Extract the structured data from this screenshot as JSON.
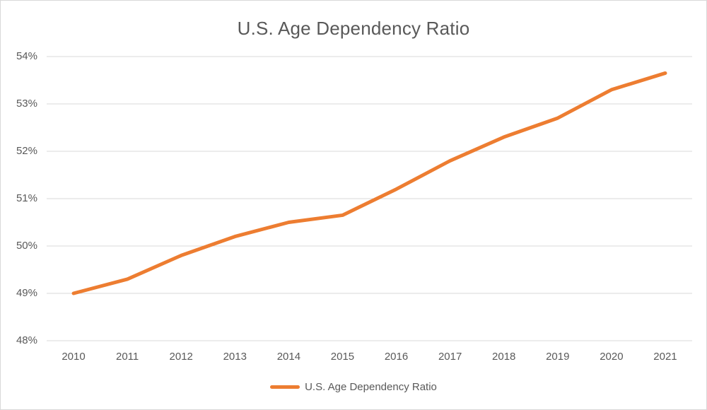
{
  "chart": {
    "title": "U.S. Age Dependency Ratio",
    "legend_label": "U.S. Age Dependency Ratio"
  },
  "chart_data": {
    "type": "line",
    "title": "U.S. Age Dependency Ratio",
    "categories": [
      "2010",
      "2011",
      "2012",
      "2013",
      "2014",
      "2015",
      "2016",
      "2017",
      "2018",
      "2019",
      "2020",
      "2021"
    ],
    "series": [
      {
        "name": "U.S. Age Dependency Ratio",
        "values": [
          49.0,
          49.3,
          49.8,
          50.2,
          50.5,
          50.65,
          51.2,
          51.8,
          52.3,
          52.7,
          53.3,
          53.65
        ]
      }
    ],
    "xlabel": "",
    "ylabel": "",
    "ylim": [
      48,
      54
    ],
    "ytick_step": 1,
    "ytick_labels": [
      "48%",
      "49%",
      "50%",
      "51%",
      "52%",
      "53%",
      "54%"
    ],
    "grid": true,
    "legend_position": "bottom"
  },
  "colors": {
    "line": "#ED7D31",
    "text": "#595959",
    "gridline": "#D9D9D9",
    "frame_border": "#D9D9D9",
    "background": "#FFFFFF"
  }
}
